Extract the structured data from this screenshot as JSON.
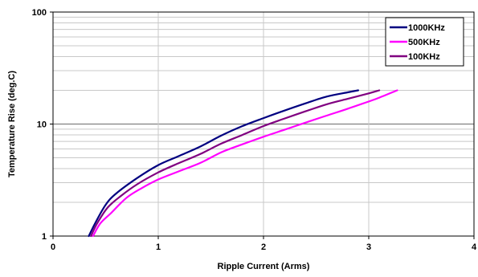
{
  "chart_data": {
    "type": "line",
    "xlabel": "Ripple Current (Arms)",
    "ylabel": "Temperature Rise (deg.C)",
    "xlim": [
      0,
      4
    ],
    "ylim": [
      1,
      100
    ],
    "yscale": "log",
    "x_ticks": [
      "0",
      "1",
      "2",
      "3",
      "4"
    ],
    "y_ticks": [
      "1",
      "10",
      "100"
    ],
    "grid": true,
    "legend_position": "top-right",
    "series": [
      {
        "name": "1000KHz",
        "color": "#000080",
        "points": [
          [
            0.34,
            1.0
          ],
          [
            0.4,
            1.3
          ],
          [
            0.5,
            1.9
          ],
          [
            0.6,
            2.4
          ],
          [
            0.8,
            3.3
          ],
          [
            1.0,
            4.3
          ],
          [
            1.2,
            5.2
          ],
          [
            1.4,
            6.3
          ],
          [
            1.6,
            7.9
          ],
          [
            1.8,
            9.6
          ],
          [
            2.0,
            11.3
          ],
          [
            2.2,
            13.2
          ],
          [
            2.4,
            15.3
          ],
          [
            2.6,
            17.6
          ],
          [
            2.8,
            19.2
          ],
          [
            2.9,
            20.0
          ]
        ]
      },
      {
        "name": "500KHz",
        "color": "#FF00FF",
        "points": [
          [
            0.38,
            1.0
          ],
          [
            0.45,
            1.3
          ],
          [
            0.55,
            1.6
          ],
          [
            0.7,
            2.2
          ],
          [
            0.85,
            2.7
          ],
          [
            1.0,
            3.2
          ],
          [
            1.2,
            3.8
          ],
          [
            1.4,
            4.5
          ],
          [
            1.6,
            5.6
          ],
          [
            1.8,
            6.6
          ],
          [
            2.0,
            7.7
          ],
          [
            2.2,
            8.9
          ],
          [
            2.4,
            10.3
          ],
          [
            2.6,
            11.9
          ],
          [
            2.8,
            13.7
          ],
          [
            3.0,
            15.9
          ],
          [
            3.1,
            17.2
          ],
          [
            3.27,
            20.0
          ]
        ]
      },
      {
        "name": "100KHz",
        "color": "#800080",
        "points": [
          [
            0.36,
            1.0
          ],
          [
            0.42,
            1.3
          ],
          [
            0.52,
            1.8
          ],
          [
            0.65,
            2.3
          ],
          [
            0.8,
            2.9
          ],
          [
            1.0,
            3.7
          ],
          [
            1.2,
            4.5
          ],
          [
            1.4,
            5.4
          ],
          [
            1.6,
            6.7
          ],
          [
            1.8,
            8.0
          ],
          [
            2.0,
            9.6
          ],
          [
            2.2,
            11.2
          ],
          [
            2.4,
            13.0
          ],
          [
            2.6,
            15.0
          ],
          [
            2.8,
            16.8
          ],
          [
            3.0,
            18.8
          ],
          [
            3.1,
            20.0
          ]
        ]
      }
    ]
  }
}
